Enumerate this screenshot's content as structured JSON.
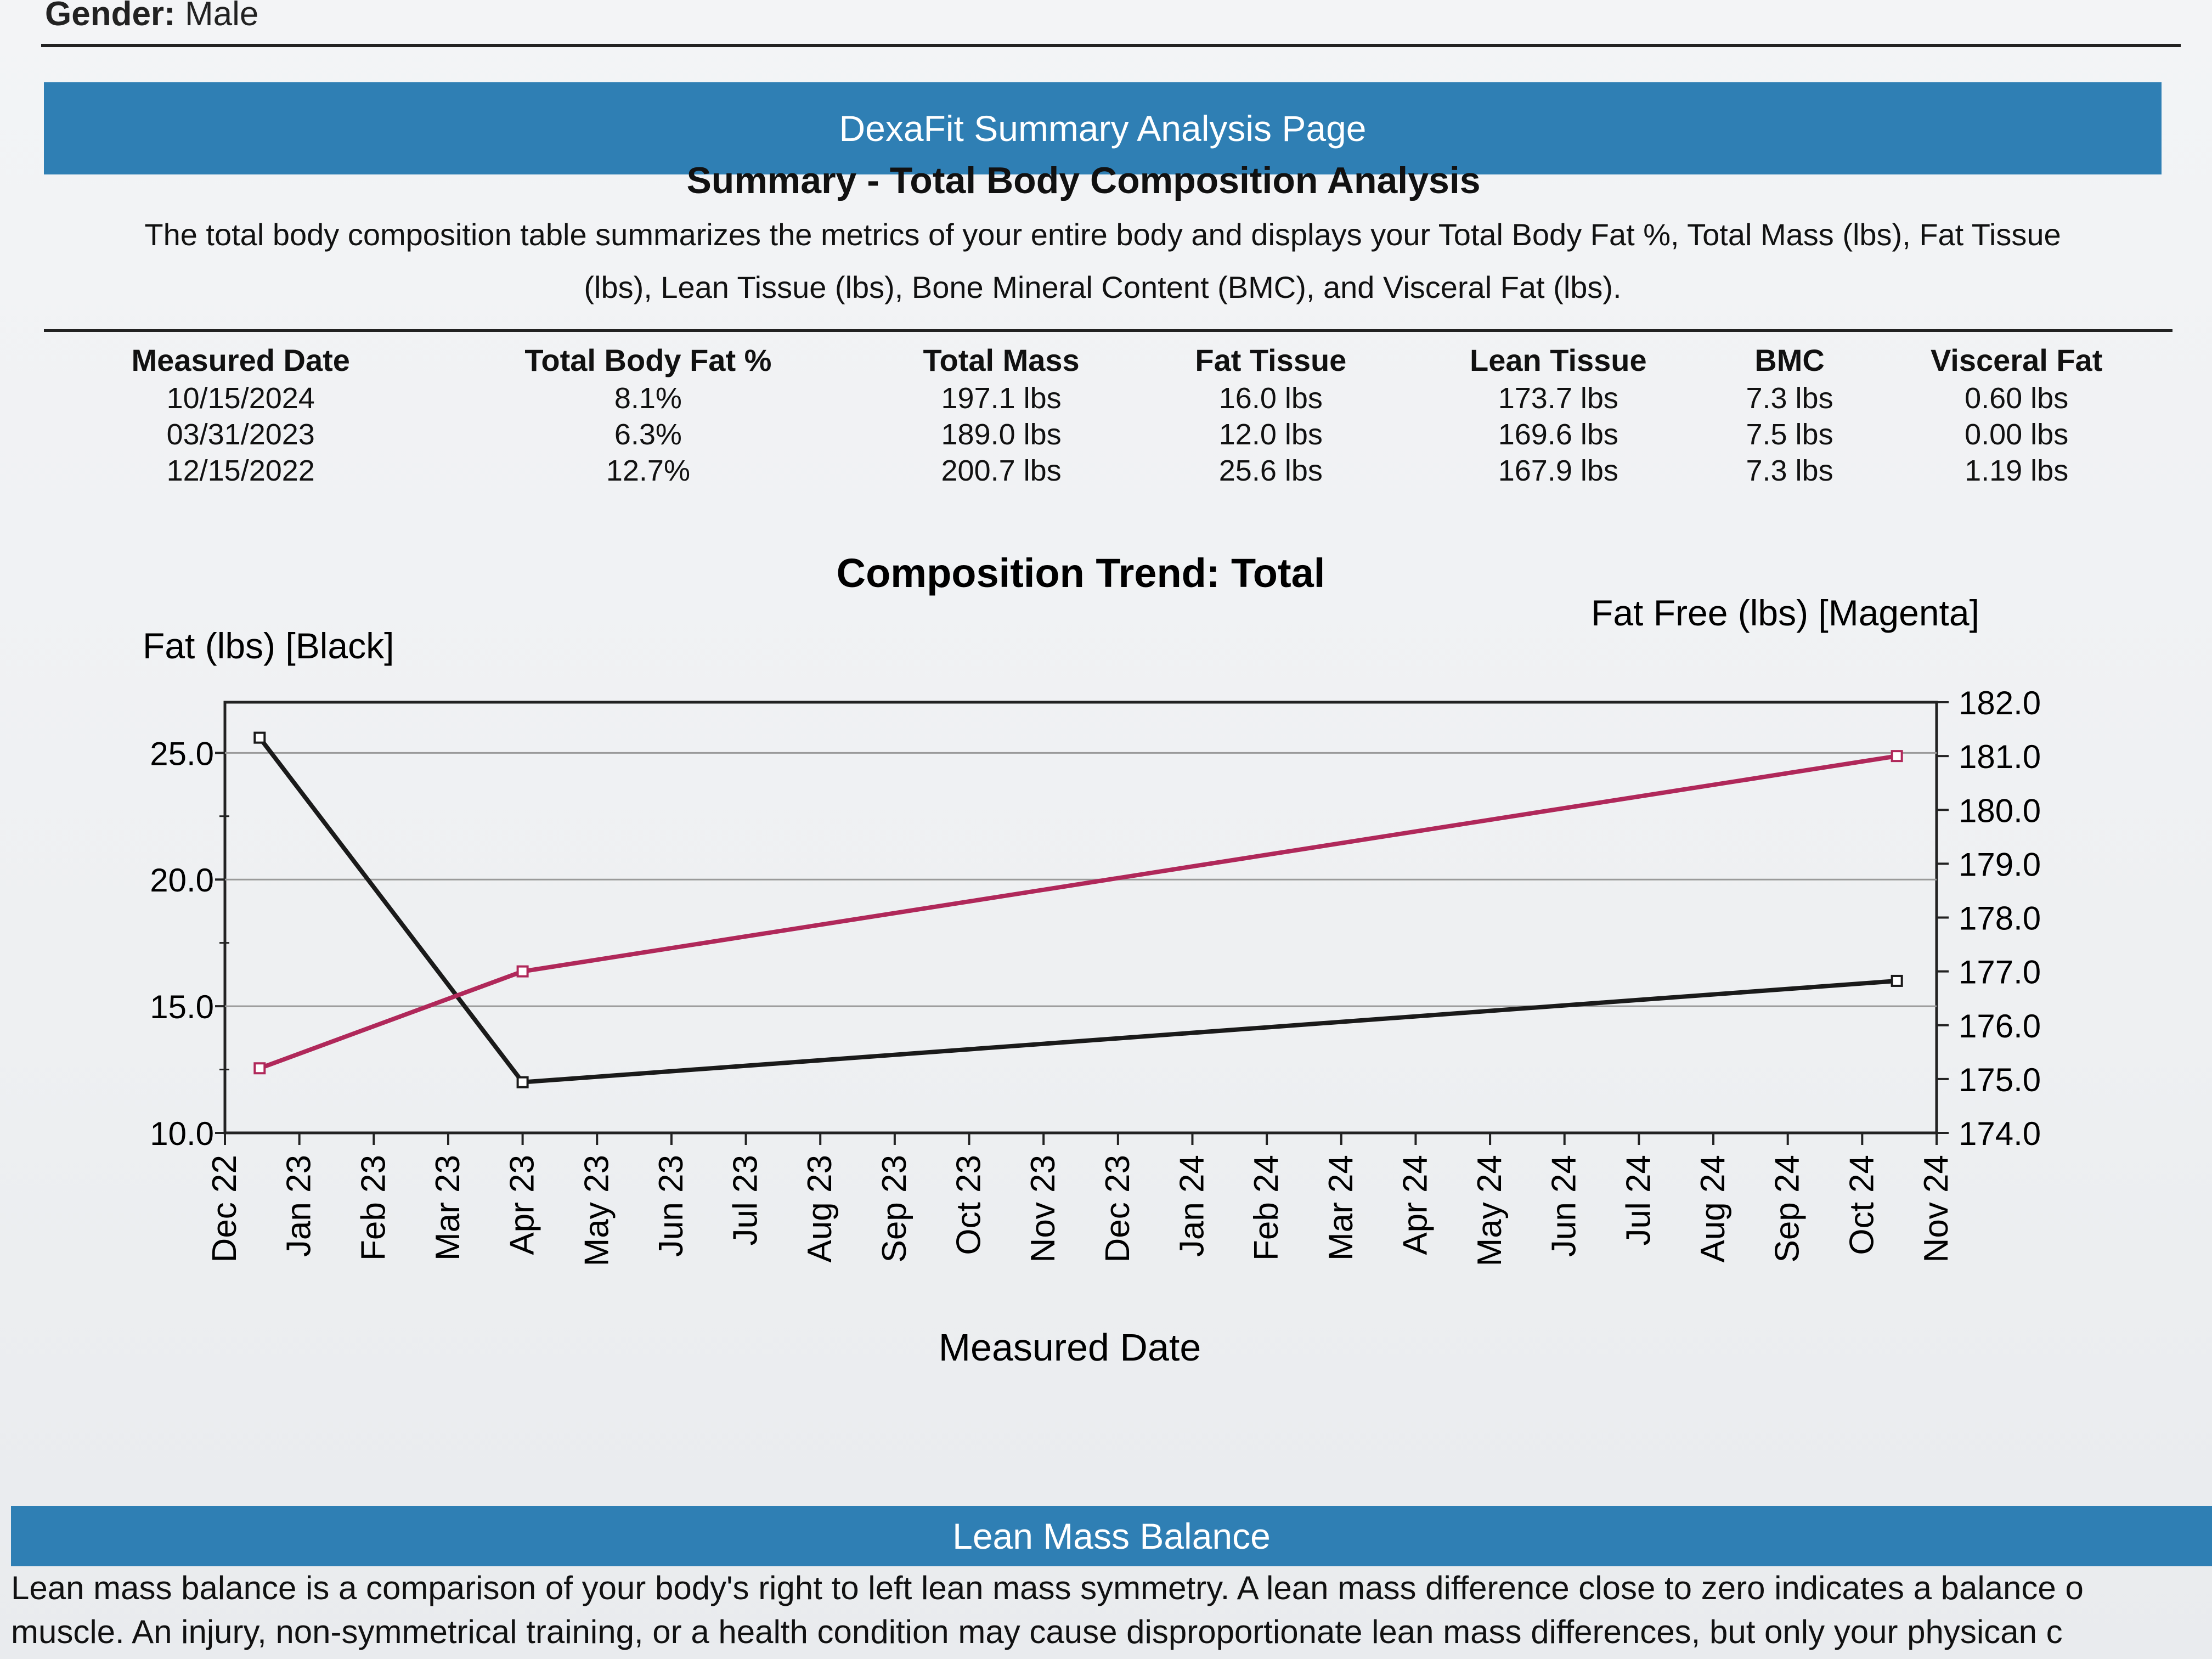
{
  "header": {
    "gender_label": "Gender:",
    "gender_value": "Male"
  },
  "section": {
    "band_title": "DexaFit Summary Analysis Page",
    "title": "Summary - Total Body Composition Analysis",
    "intro_line1": "The total body composition table summarizes the metrics of your entire body and displays your Total Body Fat %, Total Mass (lbs), Fat Tissue",
    "intro_line2": "(lbs), Lean Tissue (lbs), Bone Mineral Content (BMC), and Visceral Fat (lbs)."
  },
  "table": {
    "columns": [
      "Measured Date",
      "Total Body Fat %",
      "Total Mass",
      "Fat Tissue",
      "Lean Tissue",
      "BMC",
      "Visceral Fat"
    ],
    "rows": [
      [
        "10/15/2024",
        "8.1%",
        "197.1 lbs",
        "16.0 lbs",
        "173.7 lbs",
        "7.3 lbs",
        "0.60 lbs"
      ],
      [
        "03/31/2023",
        "6.3%",
        "189.0 lbs",
        "12.0 lbs",
        "169.6 lbs",
        "7.5 lbs",
        "0.00 lbs"
      ],
      [
        "12/15/2022",
        "12.7%",
        "200.7 lbs",
        "25.6 lbs",
        "167.9 lbs",
        "7.3 lbs",
        "1.19 lbs"
      ]
    ]
  },
  "chart_data": {
    "type": "line",
    "title": "Composition Trend: Total",
    "ylabel_left": "Fat (lbs) [Black]",
    "ylabel_right": "Fat Free (lbs) [Magenta]",
    "xlabel": "Measured Date",
    "x_ticks": [
      "Dec 22",
      "Jan 23",
      "Feb 23",
      "Mar 23",
      "Apr 23",
      "May 23",
      "Jun 23",
      "Jul 23",
      "Aug 23",
      "Sep 23",
      "Oct 23",
      "Nov 23",
      "Dec 23",
      "Jan 24",
      "Feb 24",
      "Mar 24",
      "Apr 24",
      "May 24",
      "Jun 24",
      "Jul 24",
      "Aug 24",
      "Sep 24",
      "Oct 24",
      "Nov 24"
    ],
    "y_left_ticks": [
      "10.0",
      "15.0",
      "20.0",
      "25.0"
    ],
    "y_right_ticks": [
      "174.0",
      "175.0",
      "176.0",
      "177.0",
      "178.0",
      "179.0",
      "180.0",
      "181.0",
      "182.0"
    ],
    "ylim_left": [
      10,
      27
    ],
    "ylim_right": [
      174,
      182
    ],
    "grid": true,
    "series": [
      {
        "name": "Fat (lbs)",
        "color": "#1a1a1a",
        "axis": "left",
        "x": [
          "12/15/2022",
          "03/31/2023",
          "10/15/2024"
        ],
        "values": [
          25.6,
          12.0,
          16.0
        ]
      },
      {
        "name": "Fat Free (lbs)",
        "color": "#b0285a",
        "axis": "right",
        "x": [
          "12/15/2022",
          "03/31/2023",
          "10/15/2024"
        ],
        "values": [
          175.2,
          177.0,
          181.0
        ]
      }
    ]
  },
  "lean_mass": {
    "band_title": "Lean Mass Balance",
    "text_line1": "Lean mass balance is a comparison of your body's right to left lean mass symmetry. A lean mass difference close to zero indicates a balance o",
    "text_line2": "muscle. An injury, non-symmetrical training, or a health condition may cause disproportionate lean mass differences, but only your physican c"
  }
}
